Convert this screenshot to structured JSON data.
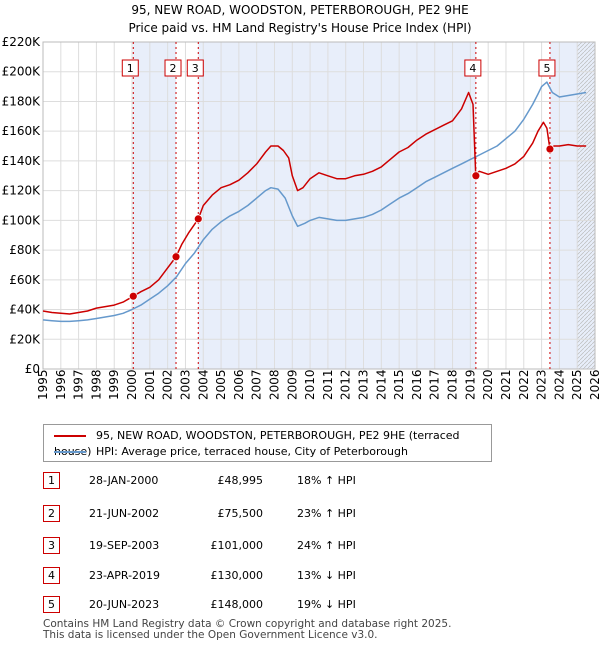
{
  "chart_data": {
    "type": "line",
    "title": "95, NEW ROAD, WOODSTON, PETERBOROUGH, PE2 9HE",
    "subtitle": "Price paid vs. HM Land Registry's House Price Index (HPI)",
    "xlim": [
      1995,
      2026
    ],
    "ylim": [
      0,
      220000
    ],
    "x_ticks": [
      "1995",
      "1996",
      "1997",
      "1998",
      "1999",
      "2000",
      "2001",
      "2002",
      "2003",
      "2004",
      "2005",
      "2006",
      "2007",
      "2008",
      "2009",
      "2010",
      "2011",
      "2012",
      "2013",
      "2014",
      "2015",
      "2016",
      "2017",
      "2018",
      "2019",
      "2020",
      "2021",
      "2022",
      "2023",
      "2024",
      "2025",
      "2026"
    ],
    "y_ticks": [
      {
        "value": 0,
        "label": "£0"
      },
      {
        "value": 20000,
        "label": "£20K"
      },
      {
        "value": 40000,
        "label": "£40K"
      },
      {
        "value": 60000,
        "label": "£60K"
      },
      {
        "value": 80000,
        "label": "£80K"
      },
      {
        "value": 100000,
        "label": "£100K"
      },
      {
        "value": 120000,
        "label": "£120K"
      },
      {
        "value": 140000,
        "label": "£140K"
      },
      {
        "value": 160000,
        "label": "£160K"
      },
      {
        "value": 180000,
        "label": "£180K"
      },
      {
        "value": 200000,
        "label": "£200K"
      },
      {
        "value": 220000,
        "label": "£220K"
      }
    ],
    "grid": true,
    "series": [
      {
        "name": "95, NEW ROAD, WOODSTON, PETERBOROUGH, PE2 9HE (terraced house)",
        "color": "#cc0000",
        "x": [
          1995.0,
          1995.5,
          1996.0,
          1996.5,
          1997.0,
          1997.5,
          1998.0,
          1998.5,
          1999.0,
          1999.5,
          2000.07,
          2000.5,
          2001.0,
          2001.5,
          2002.0,
          2002.47,
          2002.8,
          2003.2,
          2003.72,
          2004.0,
          2004.5,
          2005.0,
          2005.5,
          2006.0,
          2006.5,
          2007.0,
          2007.5,
          2007.8,
          2008.2,
          2008.5,
          2008.8,
          2009.0,
          2009.3,
          2009.6,
          2010.0,
          2010.5,
          2011.0,
          2011.5,
          2012.0,
          2012.5,
          2013.0,
          2013.5,
          2014.0,
          2014.5,
          2015.0,
          2015.5,
          2016.0,
          2016.5,
          2017.0,
          2017.5,
          2018.0,
          2018.5,
          2018.9,
          2019.15,
          2019.3,
          2019.5,
          2020.0,
          2020.5,
          2021.0,
          2021.5,
          2022.0,
          2022.5,
          2022.8,
          2023.1,
          2023.3,
          2023.47,
          2023.7,
          2024.0,
          2024.5,
          2025.0,
          2025.5
        ],
        "values": [
          39000,
          38000,
          37500,
          37000,
          38000,
          39000,
          41000,
          42000,
          43000,
          45000,
          48995,
          52000,
          55000,
          60000,
          68000,
          75500,
          84000,
          92000,
          101000,
          110000,
          117000,
          122000,
          124000,
          127000,
          132000,
          138000,
          146000,
          150000,
          150000,
          147000,
          142000,
          130000,
          120000,
          122000,
          128000,
          132000,
          130000,
          128000,
          128000,
          130000,
          131000,
          133000,
          136000,
          141000,
          146000,
          149000,
          154000,
          158000,
          161000,
          164000,
          167000,
          175000,
          186000,
          178000,
          131000,
          133000,
          131000,
          133000,
          135000,
          138000,
          143000,
          152000,
          160000,
          166000,
          162000,
          148000,
          150000,
          150000,
          151000,
          150000,
          150000
        ]
      },
      {
        "name": "HPI: Average price, terraced house, City of Peterborough",
        "color": "#6699cc",
        "x": [
          1995.0,
          1995.5,
          1996.0,
          1996.5,
          1997.0,
          1997.5,
          1998.0,
          1998.5,
          1999.0,
          1999.5,
          2000.0,
          2000.5,
          2001.0,
          2001.5,
          2002.0,
          2002.5,
          2003.0,
          2003.5,
          2004.0,
          2004.5,
          2005.0,
          2005.5,
          2006.0,
          2006.5,
          2007.0,
          2007.5,
          2007.8,
          2008.2,
          2008.6,
          2009.0,
          2009.3,
          2009.7,
          2010.0,
          2010.5,
          2011.0,
          2011.5,
          2012.0,
          2012.5,
          2013.0,
          2013.5,
          2014.0,
          2014.5,
          2015.0,
          2015.5,
          2016.0,
          2016.5,
          2017.0,
          2017.5,
          2018.0,
          2018.5,
          2019.0,
          2019.5,
          2020.0,
          2020.5,
          2021.0,
          2021.5,
          2022.0,
          2022.5,
          2022.8,
          2023.0,
          2023.3,
          2023.6,
          2024.0,
          2024.5,
          2025.0,
          2025.5
        ],
        "values": [
          33000,
          32500,
          32000,
          32000,
          32500,
          33000,
          34000,
          35000,
          36000,
          37500,
          40000,
          43000,
          47000,
          51000,
          56000,
          62000,
          71000,
          78000,
          87000,
          94000,
          99000,
          103000,
          106000,
          110000,
          115000,
          120000,
          122000,
          121000,
          115000,
          103000,
          96000,
          98000,
          100000,
          102000,
          101000,
          100000,
          100000,
          101000,
          102000,
          104000,
          107000,
          111000,
          115000,
          118000,
          122000,
          126000,
          129000,
          132000,
          135000,
          138000,
          141000,
          144000,
          147000,
          150000,
          155000,
          160000,
          168000,
          178000,
          185000,
          190000,
          193000,
          186000,
          183000,
          184000,
          185000,
          186000
        ]
      }
    ],
    "sales": [
      {
        "marker": "1",
        "x": 2000.07,
        "price": 48995
      },
      {
        "marker": "2",
        "x": 2002.47,
        "price": 75500
      },
      {
        "marker": "3",
        "x": 2003.72,
        "price": 101000
      },
      {
        "marker": "4",
        "x": 2019.31,
        "price": 130000
      },
      {
        "marker": "5",
        "x": 2023.47,
        "price": 148000
      }
    ]
  },
  "legend": {
    "property": "95, NEW ROAD, WOODSTON, PETERBOROUGH, PE2 9HE (terraced house)",
    "hpi": "HPI: Average price, terraced house, City of Peterborough"
  },
  "transactions": [
    {
      "num": "1",
      "date": "28-JAN-2000",
      "price": "£48,995",
      "hpi": "18% ↑ HPI"
    },
    {
      "num": "2",
      "date": "21-JUN-2002",
      "price": "£75,500",
      "hpi": "23% ↑ HPI"
    },
    {
      "num": "3",
      "date": "19-SEP-2003",
      "price": "£101,000",
      "hpi": "24% ↑ HPI"
    },
    {
      "num": "4",
      "date": "23-APR-2019",
      "price": "£130,000",
      "hpi": "13% ↓ HPI"
    },
    {
      "num": "5",
      "date": "20-JUN-2023",
      "price": "£148,000",
      "hpi": "19% ↓ HPI"
    }
  ],
  "footer": {
    "line1": "Contains HM Land Registry data © Crown copyright and database right 2025.",
    "line2": "This data is licensed under the Open Government Licence v3.0."
  },
  "colors": {
    "property": "#cc0000",
    "hpi": "#6699cc",
    "shade": "#e8eefa",
    "grid": "#dddddd"
  }
}
